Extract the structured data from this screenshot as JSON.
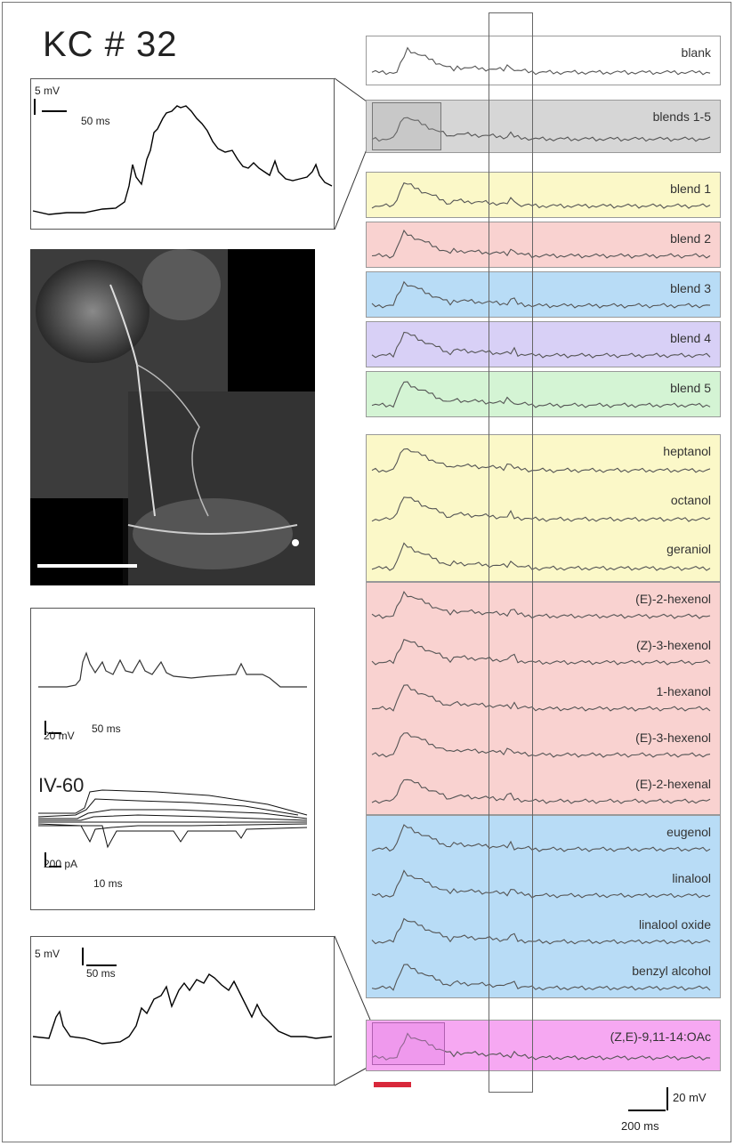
{
  "title": "KC # 32",
  "inset_top": {
    "scale_mv": "5 mV",
    "scale_ms": "50 ms"
  },
  "inset_bottom": {
    "scale_mv": "5 mV",
    "scale_ms": "50 ms"
  },
  "electro": {
    "scale_mv": "20 mV",
    "scale_ms": "50 ms",
    "iv_label": "IV-60",
    "scale_pa": "200 pA",
    "scale_ms2": "10 ms"
  },
  "scale_right": {
    "mv": "20 mV",
    "ms": "200 ms"
  },
  "colors": {
    "yellow": "#fbf8c8",
    "pink": "#f9d2d0",
    "blue": "#b8dcf6",
    "purple": "#d8d0f6",
    "green": "#d4f4d4",
    "grey": "#d6d6d6",
    "magenta": "#f6a8f2",
    "stim": "#d8283a"
  },
  "groups": [
    {
      "id": "blank",
      "color": "#ffffff",
      "labels": [
        "blank"
      ]
    },
    {
      "id": "blends15",
      "color": "#d6d6d6",
      "labels": [
        "blends 1-5"
      ]
    },
    {
      "id": "b1",
      "color": "#fbf8c8",
      "labels": [
        "blend 1"
      ]
    },
    {
      "id": "b2",
      "color": "#f9d2d0",
      "labels": [
        "blend 2"
      ]
    },
    {
      "id": "b3",
      "color": "#b8dcf6",
      "labels": [
        "blend 3"
      ]
    },
    {
      "id": "b4",
      "color": "#d8d0f6",
      "labels": [
        "blend 4"
      ]
    },
    {
      "id": "b5",
      "color": "#d4f4d4",
      "labels": [
        "blend 5"
      ]
    },
    {
      "id": "yellow",
      "color": "#fbf8c8",
      "labels": [
        "heptanol",
        "octanol",
        "geraniol"
      ]
    },
    {
      "id": "pink",
      "color": "#f9d2d0",
      "labels": [
        "(E)-2-hexenol",
        "(Z)-3-hexenol",
        "1-hexanol",
        "(E)-3-hexenol",
        "(E)-2-hexenal"
      ]
    },
    {
      "id": "blue",
      "color": "#b8dcf6",
      "labels": [
        "eugenol",
        "linalool",
        "linalool oxide",
        "benzyl alcohol"
      ]
    },
    {
      "id": "mag",
      "color": "#f6a8f2",
      "labels": [
        "(Z,E)-9,11-14:OAc"
      ]
    }
  ]
}
